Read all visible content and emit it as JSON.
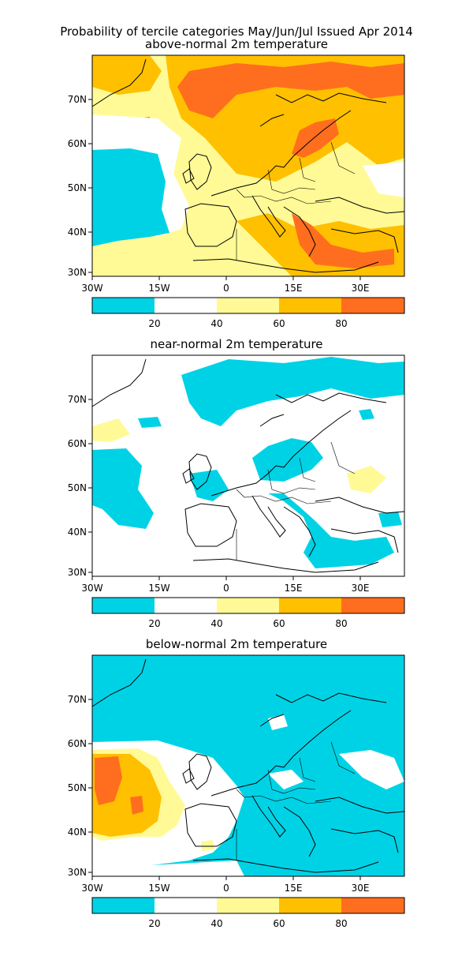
{
  "header": {
    "line1": "Probability of tercile categories May/Jun/Jul Issued Apr 2014",
    "line2": "above-normal 2m temperature"
  },
  "colors": {
    "cyan": "#00d2e6",
    "white": "#ffffff",
    "light_yellow": "#fffa96",
    "yellow_orange": "#ffc000",
    "orange": "#ff6e1e",
    "coast": "#000000"
  },
  "legend": {
    "bins": [
      "0-20",
      "20-40",
      "40-60",
      "60-80",
      "80-100"
    ],
    "bin_colors": [
      "#00d2e6",
      "#ffffff",
      "#fffa96",
      "#ffc000",
      "#ff6e1e"
    ],
    "tick_labels": [
      "20",
      "40",
      "60",
      "80"
    ]
  },
  "axes": {
    "lon_labels": [
      "30W",
      "15W",
      "0",
      "15E",
      "30E"
    ],
    "lat_labels": [
      "70N",
      "60N",
      "50N",
      "40N",
      "30N"
    ],
    "lon_range": [
      -30,
      40
    ],
    "lat_range": [
      29,
      80
    ]
  },
  "panels": [
    {
      "title": "",
      "dominant": "above",
      "legend_ticks": [
        "20",
        "40",
        "60",
        "80"
      ]
    },
    {
      "title": "near-normal 2m temperature",
      "dominant": "near",
      "legend_ticks": [
        "20",
        "40",
        "60",
        "80"
      ]
    },
    {
      "title": "below-normal 2m temperature",
      "dominant": "below",
      "legend_ticks": [
        "20",
        "40",
        "60",
        "80"
      ]
    }
  ]
}
